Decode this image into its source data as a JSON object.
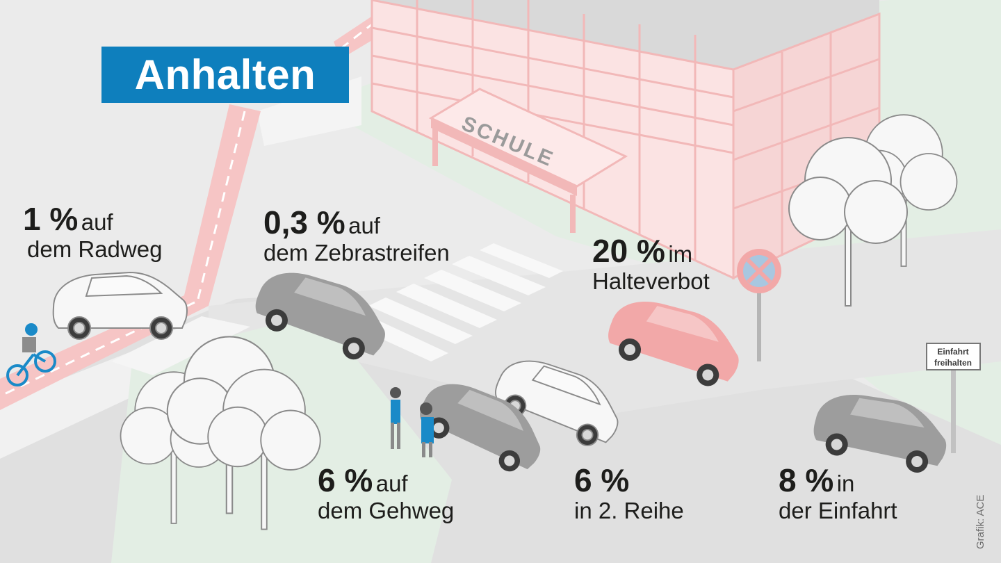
{
  "title": "Anhalten",
  "credit": "Grafik: ACE",
  "school_sign": "SCHULE",
  "einfahrt_sign": [
    "Einfahrt",
    "freihalten"
  ],
  "colors": {
    "title_bg": "#0e7fbd",
    "highlight": "#f2a8a8",
    "text": "#1d1d1b",
    "background": "#ededed"
  },
  "chart_data": {
    "type": "table",
    "title": "Anhalten",
    "categories": [
      "auf dem Radweg",
      "auf dem Zebrastreifen",
      "im Halteverbot",
      "auf dem Gehweg",
      "in 2. Reihe",
      "in der Einfahrt"
    ],
    "values": [
      1,
      0.3,
      20,
      6,
      6,
      8
    ],
    "unit": "%",
    "items": [
      {
        "value": 1,
        "pct": "1 %",
        "inline": "auf",
        "line2": "dem Radweg"
      },
      {
        "value": 0.3,
        "pct": "0,3 %",
        "inline": "auf",
        "line2": "dem Zebrastreifen"
      },
      {
        "value": 20,
        "pct": "20 %",
        "inline": "im",
        "line2": "Halteverbot"
      },
      {
        "value": 6,
        "pct": "6 %",
        "inline": "auf",
        "line2": "dem Gehweg"
      },
      {
        "value": 6,
        "pct": "6 %",
        "inline": "",
        "line2": "in 2. Reihe"
      },
      {
        "value": 8,
        "pct": "8 %",
        "inline": "in",
        "line2": "der Einfahrt"
      }
    ]
  }
}
